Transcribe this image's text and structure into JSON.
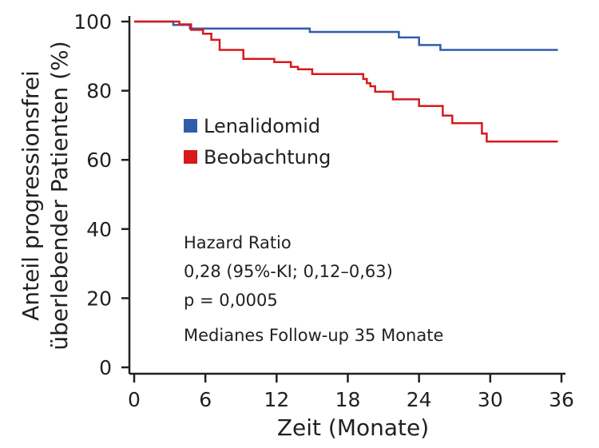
{
  "chart_data": {
    "type": "line",
    "xlabel": "Zeit (Monate)",
    "ylabel_lines": [
      "Anteil progressionsfrei",
      "überlebender Patienten (%)"
    ],
    "xlim": [
      0,
      36
    ],
    "ylim": [
      0,
      100
    ],
    "x_ticks": [
      "0",
      "6",
      "12",
      "18",
      "24",
      "30",
      "36"
    ],
    "y_ticks": [
      "0",
      "20",
      "40",
      "60",
      "80",
      "100"
    ],
    "grid": false,
    "legend_position": "center-left",
    "series": [
      {
        "name": "Lenalidomid",
        "color": "#2e5eaa",
        "x": [
          0,
          3.3,
          4.7,
          14.8,
          22.3,
          24.0,
          25.8,
          35.7
        ],
        "y": [
          100,
          99,
          98,
          97,
          95.4,
          93.2,
          91.8,
          91.8
        ]
      },
      {
        "name": "Beobachtung",
        "color": "#d7191c",
        "x": [
          0,
          3.8,
          4.8,
          5.8,
          6.5,
          7.2,
          9.2,
          11.8,
          13.2,
          13.8,
          15.0,
          19.3,
          19.6,
          19.9,
          20.3,
          21.8,
          24.0,
          26.0,
          26.8,
          29.3,
          29.7,
          35.7
        ],
        "y": [
          100,
          99.2,
          97.6,
          96.5,
          94.7,
          91.8,
          89.2,
          88.3,
          86.9,
          86.2,
          84.8,
          83.4,
          82.2,
          81.3,
          79.7,
          77.5,
          75.6,
          72.8,
          70.6,
          67.6,
          65.3,
          65.3
        ]
      }
    ],
    "annotation": {
      "lines": [
        "Hazard Ratio",
        "0,28 (95%-KI; 0,12–0,63)",
        "p = 0,0005",
        "Medianes Follow-up 35 Monate"
      ]
    }
  }
}
